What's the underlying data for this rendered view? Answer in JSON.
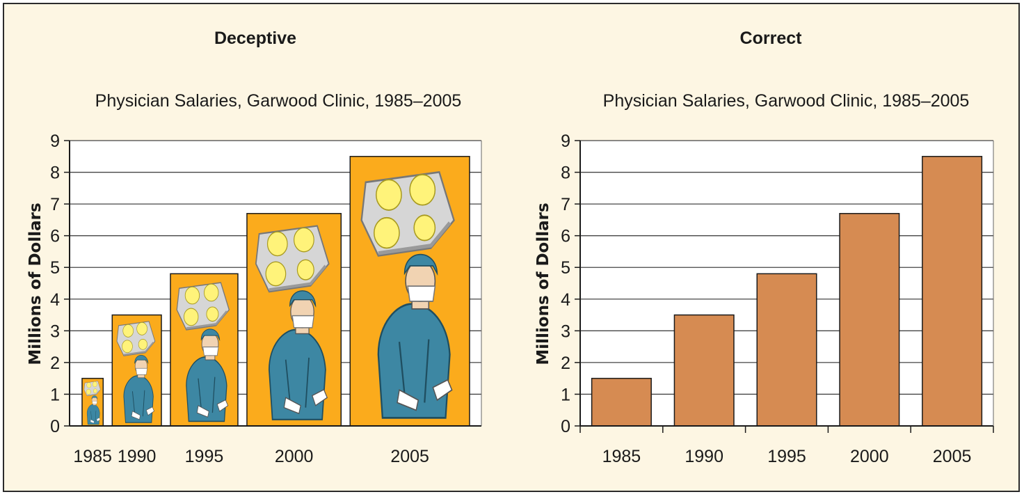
{
  "chart_data": [
    {
      "type": "bar",
      "panel_title": "Deceptive",
      "title": "Physician Salaries, Garwood Clinic, 1985–2005",
      "xlabel": "",
      "ylabel": "Millions of Dollars",
      "categories": [
        "1985",
        "1990",
        "1995",
        "2000",
        "2005"
      ],
      "values": [
        1.5,
        3.5,
        4.8,
        6.7,
        8.5
      ],
      "ylim": [
        0,
        9
      ],
      "yticks": [
        "0",
        "1",
        "2",
        "3",
        "4",
        "5",
        "6",
        "7",
        "8",
        "9"
      ],
      "grid": true,
      "bar_color": "#fbab1c",
      "pictograph": "surgeon-icon"
    },
    {
      "type": "bar",
      "panel_title": "Correct",
      "title": "Physician Salaries, Garwood Clinic, 1985–2005",
      "xlabel": "",
      "ylabel": "Millions of Dollars",
      "categories": [
        "1985",
        "1990",
        "1995",
        "2000",
        "2005"
      ],
      "values": [
        1.5,
        3.5,
        4.8,
        6.7,
        8.5
      ],
      "ylim": [
        0,
        9
      ],
      "yticks": [
        "0",
        "1",
        "2",
        "3",
        "4",
        "5",
        "6",
        "7",
        "8",
        "9"
      ],
      "grid": true,
      "bar_color": "#d68b52"
    }
  ]
}
